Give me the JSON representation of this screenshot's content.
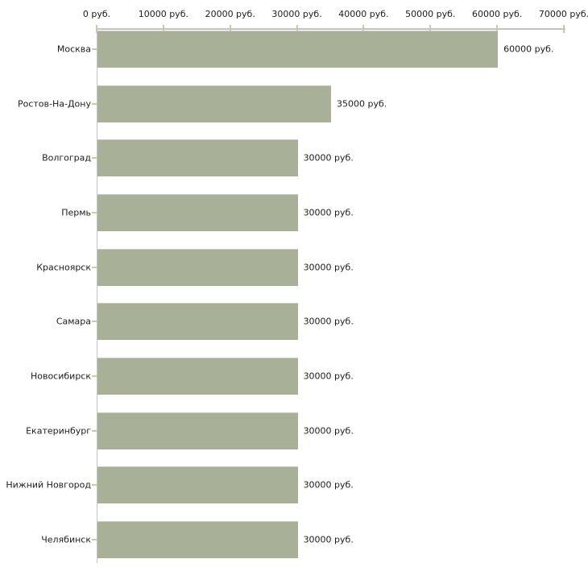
{
  "chart_data": {
    "type": "bar",
    "orientation": "horizontal",
    "title": "",
    "xlabel": "",
    "ylabel": "",
    "unit": "руб.",
    "categories": [
      "Москва",
      "Ростов-На-Дону",
      "Волгоград",
      "Пермь",
      "Красноярск",
      "Самара",
      "Новосибирск",
      "Екатеринбург",
      "Нижний Новгород",
      "Челябинск"
    ],
    "values": [
      60000,
      35000,
      30000,
      30000,
      30000,
      30000,
      30000,
      30000,
      30000,
      30000
    ],
    "value_labels": [
      "60000 руб.",
      "35000 руб.",
      "30000 руб.",
      "30000 руб.",
      "30000 руб.",
      "30000 руб.",
      "30000 руб.",
      "30000 руб.",
      "30000 руб.",
      "30000 руб."
    ],
    "x_tick_values": [
      0,
      10000,
      20000,
      30000,
      40000,
      50000,
      60000,
      70000
    ],
    "x_tick_labels": [
      "0 руб.",
      "10000 руб.",
      "20000 руб.",
      "30000 руб.",
      "40000 руб.",
      "50000 руб.",
      "60000 руб.",
      "70000 руб."
    ],
    "xlim": [
      0,
      70000
    ],
    "grid": false,
    "legend": "none",
    "colors": {
      "bar": "#a9b098",
      "axis": "#c3c3c3",
      "tick": "#cccc99",
      "text": "#1c1c1c",
      "background": "#ffffff"
    }
  }
}
